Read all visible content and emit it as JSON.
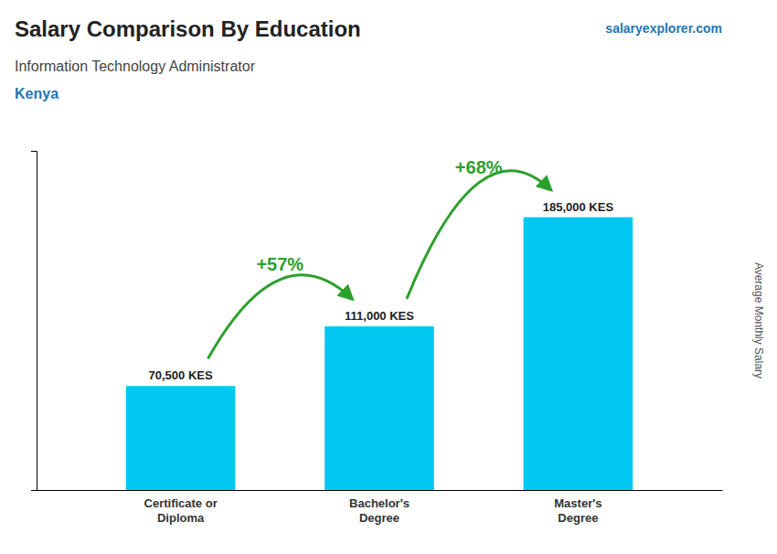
{
  "chart_data": {
    "type": "bar",
    "title": "Salary Comparison By Education",
    "subtitle": "Information Technology Administrator",
    "annotations": {
      "country": "Kenya",
      "source": "salaryexplorer.com",
      "changes": [
        "+57%",
        "+68%"
      ]
    },
    "ylabel": "Average Monthly Salary",
    "categories": [
      "Certificate or\nDiploma",
      "Bachelor's\nDegree",
      "Master's\nDegree"
    ],
    "values": [
      70500,
      111000,
      185000
    ],
    "value_labels": [
      "70,500 KES",
      "111,000 KES",
      "185,000 KES"
    ],
    "data_labels": true,
    "color": "#00C8F0",
    "ylim": [
      0,
      230000
    ],
    "grid": false,
    "tick_labels": "x"
  }
}
